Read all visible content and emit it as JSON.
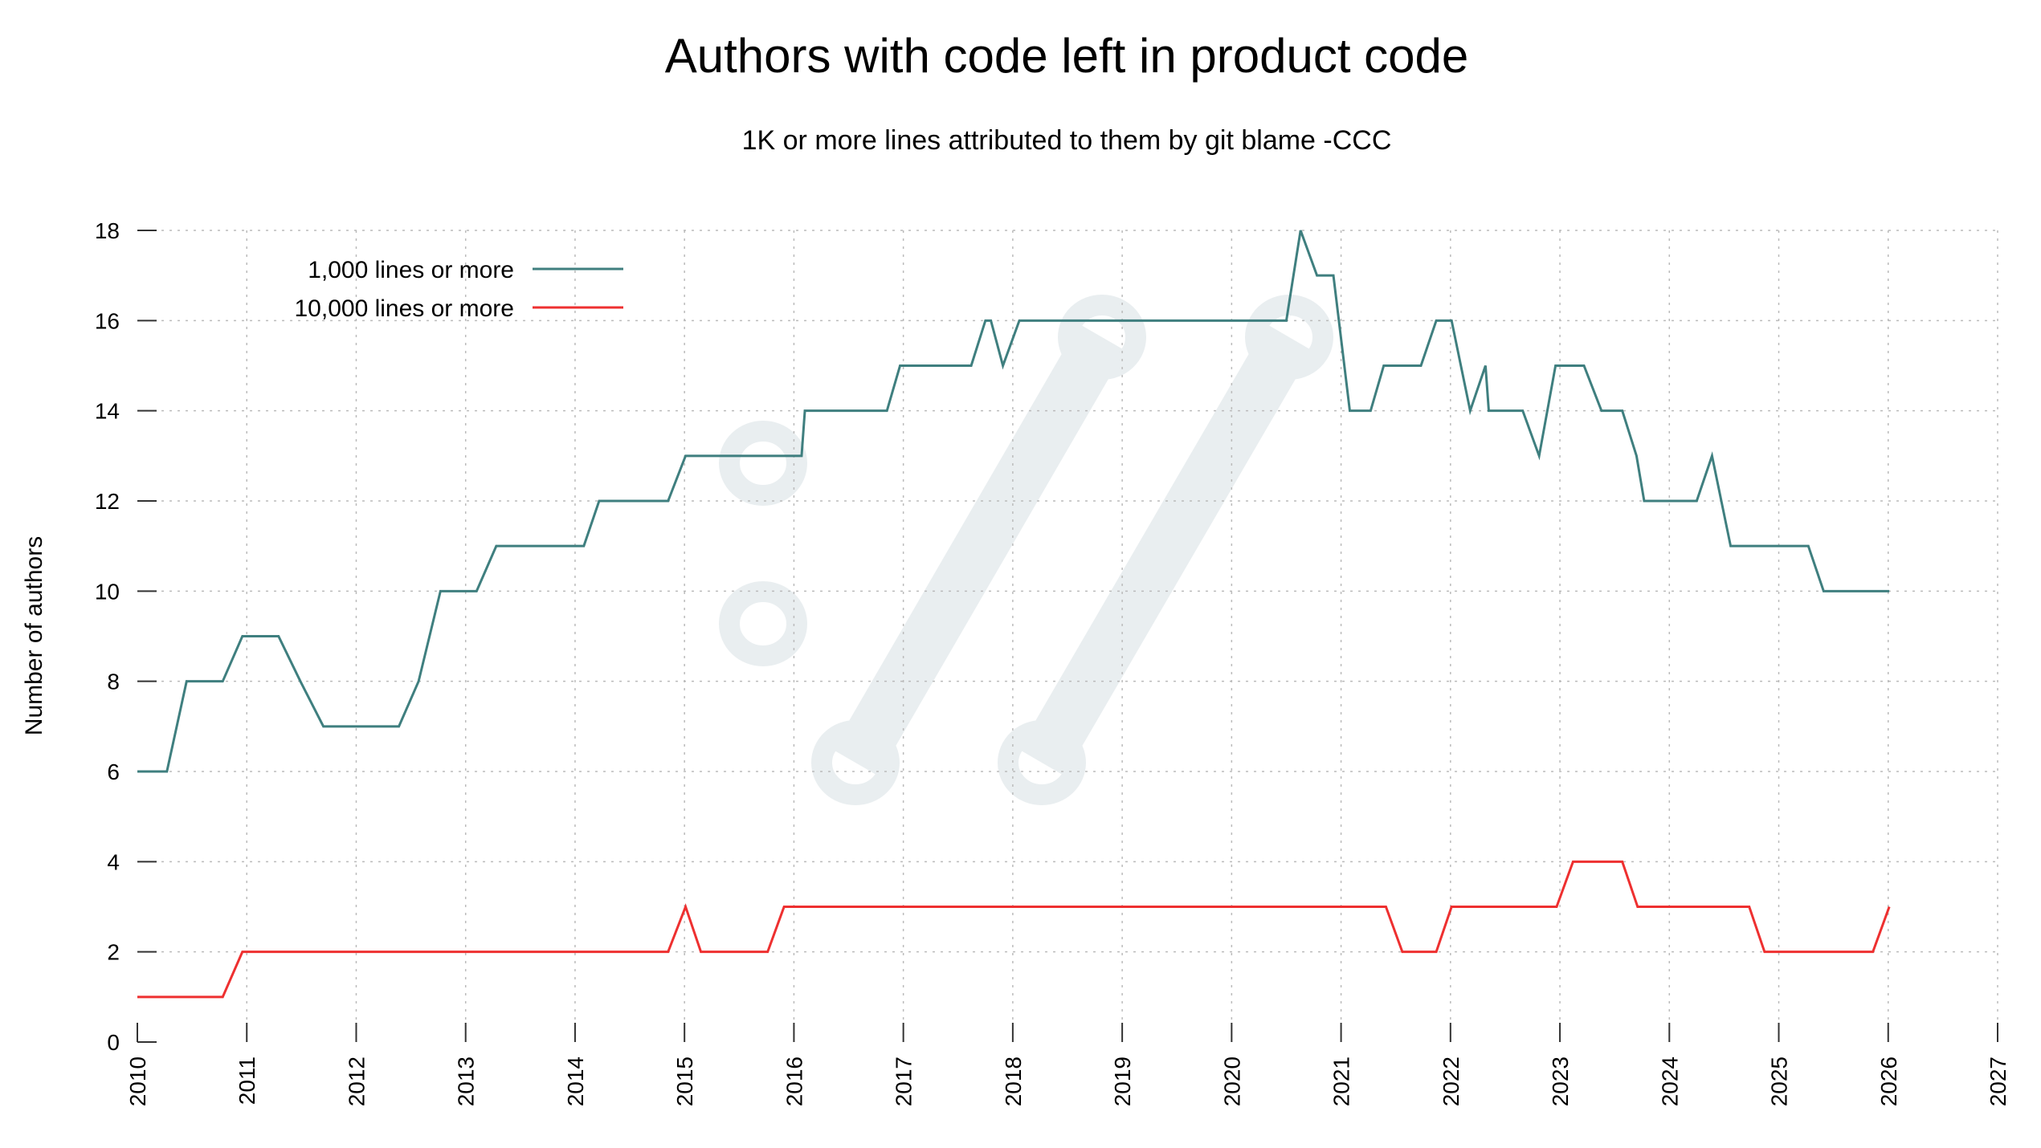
{
  "chart_data": {
    "type": "line",
    "title": "Authors with code left in product code",
    "subtitle": "1K or more lines attributed to them by git blame -CCC",
    "xlabel": "",
    "ylabel": "Number of authors",
    "xlim": [
      2010,
      2027
    ],
    "ylim": [
      0,
      18
    ],
    "xticks": [
      2010,
      2011,
      2012,
      2013,
      2014,
      2015,
      2016,
      2017,
      2018,
      2019,
      2020,
      2021,
      2022,
      2023,
      2024,
      2025,
      2026,
      2027
    ],
    "yticks": [
      0,
      2,
      4,
      6,
      8,
      10,
      12,
      14,
      16,
      18
    ],
    "grid": true,
    "legend_position": "top-left",
    "series": [
      {
        "name": "1,000 lines or more",
        "color": "#3f7f7f",
        "points": [
          [
            2010.0,
            6
          ],
          [
            2010.27,
            6
          ],
          [
            2010.45,
            8
          ],
          [
            2010.78,
            8
          ],
          [
            2010.96,
            9
          ],
          [
            2011.29,
            9
          ],
          [
            2011.49,
            8
          ],
          [
            2011.7,
            7
          ],
          [
            2012.39,
            7
          ],
          [
            2012.57,
            8
          ],
          [
            2012.77,
            10
          ],
          [
            2013.1,
            10
          ],
          [
            2013.28,
            11
          ],
          [
            2014.08,
            11
          ],
          [
            2014.22,
            12
          ],
          [
            2014.85,
            12
          ],
          [
            2015.01,
            13
          ],
          [
            2016.07,
            13
          ],
          [
            2016.1,
            14
          ],
          [
            2016.85,
            14
          ],
          [
            2016.97,
            15
          ],
          [
            2017.62,
            15
          ],
          [
            2017.75,
            16
          ],
          [
            2017.8,
            16
          ],
          [
            2017.91,
            15
          ],
          [
            2018.06,
            16
          ],
          [
            2020.5,
            16
          ],
          [
            2020.63,
            18
          ],
          [
            2020.78,
            17
          ],
          [
            2020.93,
            17
          ],
          [
            2021.08,
            14
          ],
          [
            2021.27,
            14
          ],
          [
            2021.39,
            15
          ],
          [
            2021.73,
            15
          ],
          [
            2021.87,
            16
          ],
          [
            2022.01,
            16
          ],
          [
            2022.18,
            14
          ],
          [
            2022.32,
            15
          ],
          [
            2022.35,
            14
          ],
          [
            2022.66,
            14
          ],
          [
            2022.81,
            13
          ],
          [
            2022.96,
            15
          ],
          [
            2023.22,
            15
          ],
          [
            2023.38,
            14
          ],
          [
            2023.57,
            14
          ],
          [
            2023.7,
            13
          ],
          [
            2023.77,
            12
          ],
          [
            2024.25,
            12
          ],
          [
            2024.39,
            13
          ],
          [
            2024.56,
            11
          ],
          [
            2025.27,
            11
          ],
          [
            2025.41,
            10
          ],
          [
            2026.01,
            10
          ]
        ]
      },
      {
        "name": "10,000 lines or more",
        "color": "#ee3030",
        "points": [
          [
            2010.0,
            1
          ],
          [
            2010.78,
            1
          ],
          [
            2010.96,
            2
          ],
          [
            2014.85,
            2
          ],
          [
            2015.01,
            3
          ],
          [
            2015.15,
            2
          ],
          [
            2015.76,
            2
          ],
          [
            2015.91,
            3
          ],
          [
            2021.41,
            3
          ],
          [
            2021.56,
            2
          ],
          [
            2021.87,
            2
          ],
          [
            2022.01,
            3
          ],
          [
            2022.97,
            3
          ],
          [
            2023.12,
            4
          ],
          [
            2023.57,
            4
          ],
          [
            2023.71,
            3
          ],
          [
            2024.73,
            3
          ],
          [
            2024.87,
            2
          ],
          [
            2025.86,
            2
          ],
          [
            2026.01,
            3
          ]
        ]
      }
    ],
    "watermark_color": "#e9eef0"
  }
}
